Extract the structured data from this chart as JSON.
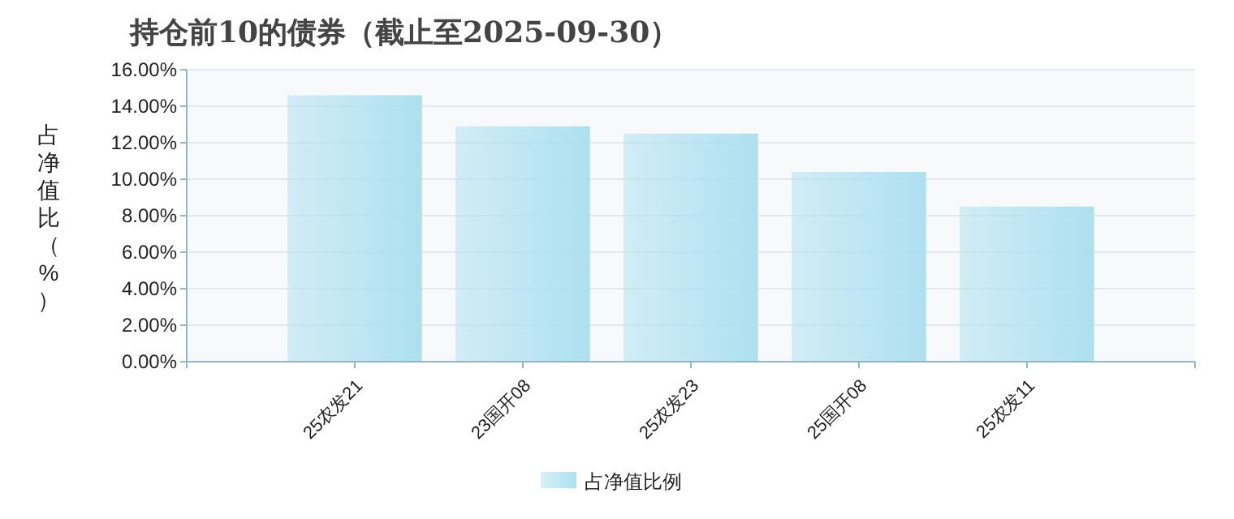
{
  "chart_data": {
    "type": "bar",
    "title": "持仓前10的债券（截止至2025-09-30）",
    "ylabel": "占净值比（%）",
    "categories": [
      "25农发21",
      "23国开08",
      "25农发23",
      "25国开08",
      "25农发11"
    ],
    "series": [
      {
        "name": "占净值比例",
        "color": "#ade0f0",
        "values": [
          14.6,
          12.9,
          12.5,
          10.4,
          8.5
        ]
      }
    ],
    "ylim": [
      0,
      16
    ],
    "yticks": [
      {
        "value": 0,
        "label": "0.00%"
      },
      {
        "value": 2,
        "label": "2.00%"
      },
      {
        "value": 4,
        "label": "4.00%"
      },
      {
        "value": 6,
        "label": "6.00%"
      },
      {
        "value": 8,
        "label": "8.00%"
      },
      {
        "value": 10,
        "label": "10.00%"
      },
      {
        "value": 12,
        "label": "12.00%"
      },
      {
        "value": 14,
        "label": "14.00%"
      },
      {
        "value": 16,
        "label": "16.00%"
      }
    ],
    "grid": "y",
    "legend": "bottom"
  }
}
